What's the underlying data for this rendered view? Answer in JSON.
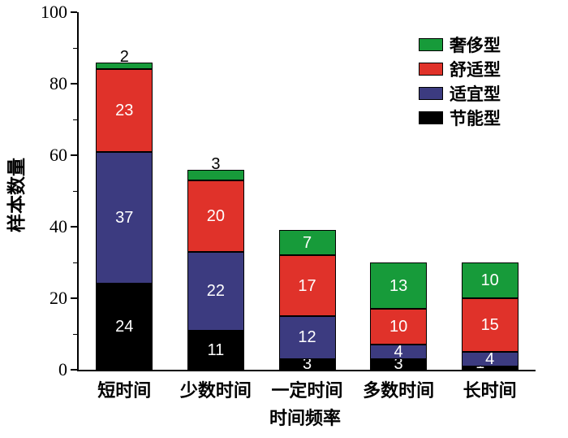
{
  "figure": {
    "ylabel": "样本数量",
    "xlabel": "时间频率"
  },
  "chart_data": {
    "type": "bar",
    "stacked": true,
    "title": "",
    "xlabel": "时间频率",
    "ylabel": "样本数量",
    "categories": [
      "短时间",
      "少数时间",
      "一定时间",
      "多数时间",
      "长时间"
    ],
    "series": [
      {
        "name": "节能型",
        "color": "#000000",
        "values": [
          24,
          11,
          3,
          3,
          1
        ]
      },
      {
        "name": "适宜型",
        "color": "#3c3b80",
        "values": [
          37,
          22,
          12,
          4,
          4
        ]
      },
      {
        "name": "舒适型",
        "color": "#e0322a",
        "values": [
          23,
          20,
          17,
          10,
          15
        ]
      },
      {
        "name": "奢侈型",
        "color": "#179b3a",
        "values": [
          2,
          3,
          7,
          13,
          10
        ]
      }
    ],
    "totals": [
      86,
      56,
      39,
      30,
      30
    ],
    "ylim": [
      0,
      100
    ],
    "yticks": [
      0,
      20,
      40,
      60,
      80,
      100
    ],
    "grid": false,
    "legend": {
      "position": "top-right",
      "entries": [
        "奢侈型",
        "舒适型",
        "适宜型",
        "节能型"
      ]
    }
  }
}
